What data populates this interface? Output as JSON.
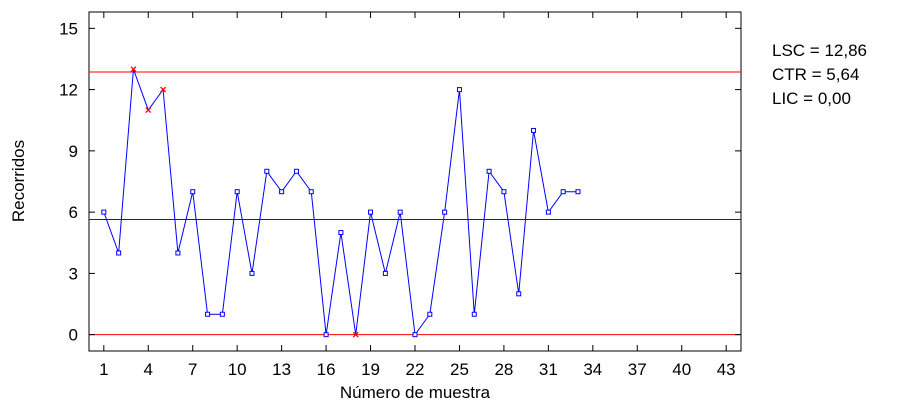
{
  "chart_data": {
    "type": "line",
    "xlabel": "Número de muestra",
    "ylabel": "Recorridos",
    "xlim": [
      0,
      44
    ],
    "ylim": [
      -0.8,
      15.8
    ],
    "xticks": [
      1,
      4,
      7,
      10,
      13,
      16,
      19,
      22,
      25,
      28,
      31,
      34,
      37,
      40,
      43
    ],
    "yticks": [
      0,
      3,
      6,
      9,
      12,
      15
    ],
    "grid": false,
    "series": [
      {
        "x": [
          1,
          2,
          3,
          4,
          5,
          6,
          7,
          8,
          9,
          10,
          11,
          12,
          13,
          14,
          15,
          16,
          17,
          18,
          19,
          20,
          21,
          22,
          23,
          24,
          25,
          26,
          27,
          28,
          29,
          30,
          31,
          32,
          33
        ],
        "values": [
          6,
          4,
          13,
          11,
          12,
          4,
          7,
          1,
          1,
          7,
          3,
          8,
          7,
          8,
          7,
          0,
          5,
          0,
          6,
          3,
          6,
          0,
          1,
          6,
          12,
          1,
          8,
          7,
          2,
          10,
          6,
          7,
          7
        ],
        "out_of_control": [
          3,
          4,
          5,
          18
        ],
        "color": "#0000ff",
        "flag_color": "#ff0000"
      }
    ],
    "control_lines": [
      {
        "value": 12.86,
        "color": "#ff0000"
      },
      {
        "value": 5.64,
        "color": "#800000"
      },
      {
        "value": 0.0,
        "color": "#ff0000"
      }
    ],
    "legend": {
      "placement": "top-right",
      "entries": [
        "LSC = 12,86",
        "CTR = 5,64",
        "LIC = 0,00"
      ]
    }
  }
}
